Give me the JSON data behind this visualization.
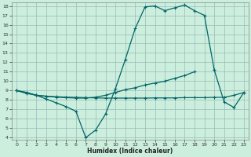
{
  "xlabel": "Humidex (Indice chaleur)",
  "bg_color": "#cceedd",
  "grid_color": "#99bbbb",
  "line_color": "#006666",
  "ylim": [
    4,
    18
  ],
  "xlim": [
    0,
    23
  ],
  "yticks": [
    4,
    5,
    6,
    7,
    8,
    9,
    10,
    11,
    12,
    13,
    14,
    15,
    16,
    17,
    18
  ],
  "xticks": [
    0,
    1,
    2,
    3,
    4,
    5,
    6,
    7,
    8,
    9,
    10,
    11,
    12,
    13,
    14,
    15,
    16,
    17,
    18,
    19,
    20,
    21,
    22,
    23
  ],
  "curve1_x": [
    0,
    1,
    2,
    3,
    4,
    5,
    6,
    7,
    8,
    9,
    10,
    11,
    12,
    13,
    14,
    15,
    16,
    17,
    18,
    19,
    20
  ],
  "curve1_y": [
    9.0,
    8.8,
    8.5,
    8.1,
    7.7,
    7.3,
    6.8,
    4.0,
    4.8,
    6.5,
    9.2,
    12.3,
    15.6,
    17.9,
    18.0,
    17.5,
    17.8,
    18.1,
    17.5,
    17.0,
    11.2
  ],
  "curve2_x": [
    0,
    1,
    2,
    3,
    4,
    5,
    6,
    7,
    8,
    9,
    10,
    11,
    12,
    13,
    14,
    15,
    16,
    17,
    18
  ],
  "curve2_y": [
    9.0,
    8.7,
    8.5,
    8.4,
    8.3,
    8.25,
    8.2,
    8.2,
    8.3,
    8.5,
    8.8,
    9.1,
    9.3,
    9.6,
    9.8,
    10.0,
    10.3,
    10.6,
    11.0
  ],
  "curve3_x": [
    0,
    1,
    2,
    3,
    4,
    5,
    6,
    7,
    8,
    9,
    10,
    11,
    12,
    13,
    14,
    15,
    16,
    17,
    18,
    19,
    20,
    21,
    22,
    23
  ],
  "curve3_y": [
    9.0,
    8.8,
    8.5,
    8.4,
    8.35,
    8.3,
    8.28,
    8.25,
    8.22,
    8.2,
    8.2,
    8.2,
    8.2,
    8.2,
    8.22,
    8.22,
    8.22,
    8.25,
    8.25,
    8.25,
    8.28,
    8.28,
    8.5,
    8.8
  ],
  "curve4_x": [
    20,
    21,
    22,
    23
  ],
  "curve4_y": [
    11.2,
    7.8,
    7.2,
    8.8
  ]
}
